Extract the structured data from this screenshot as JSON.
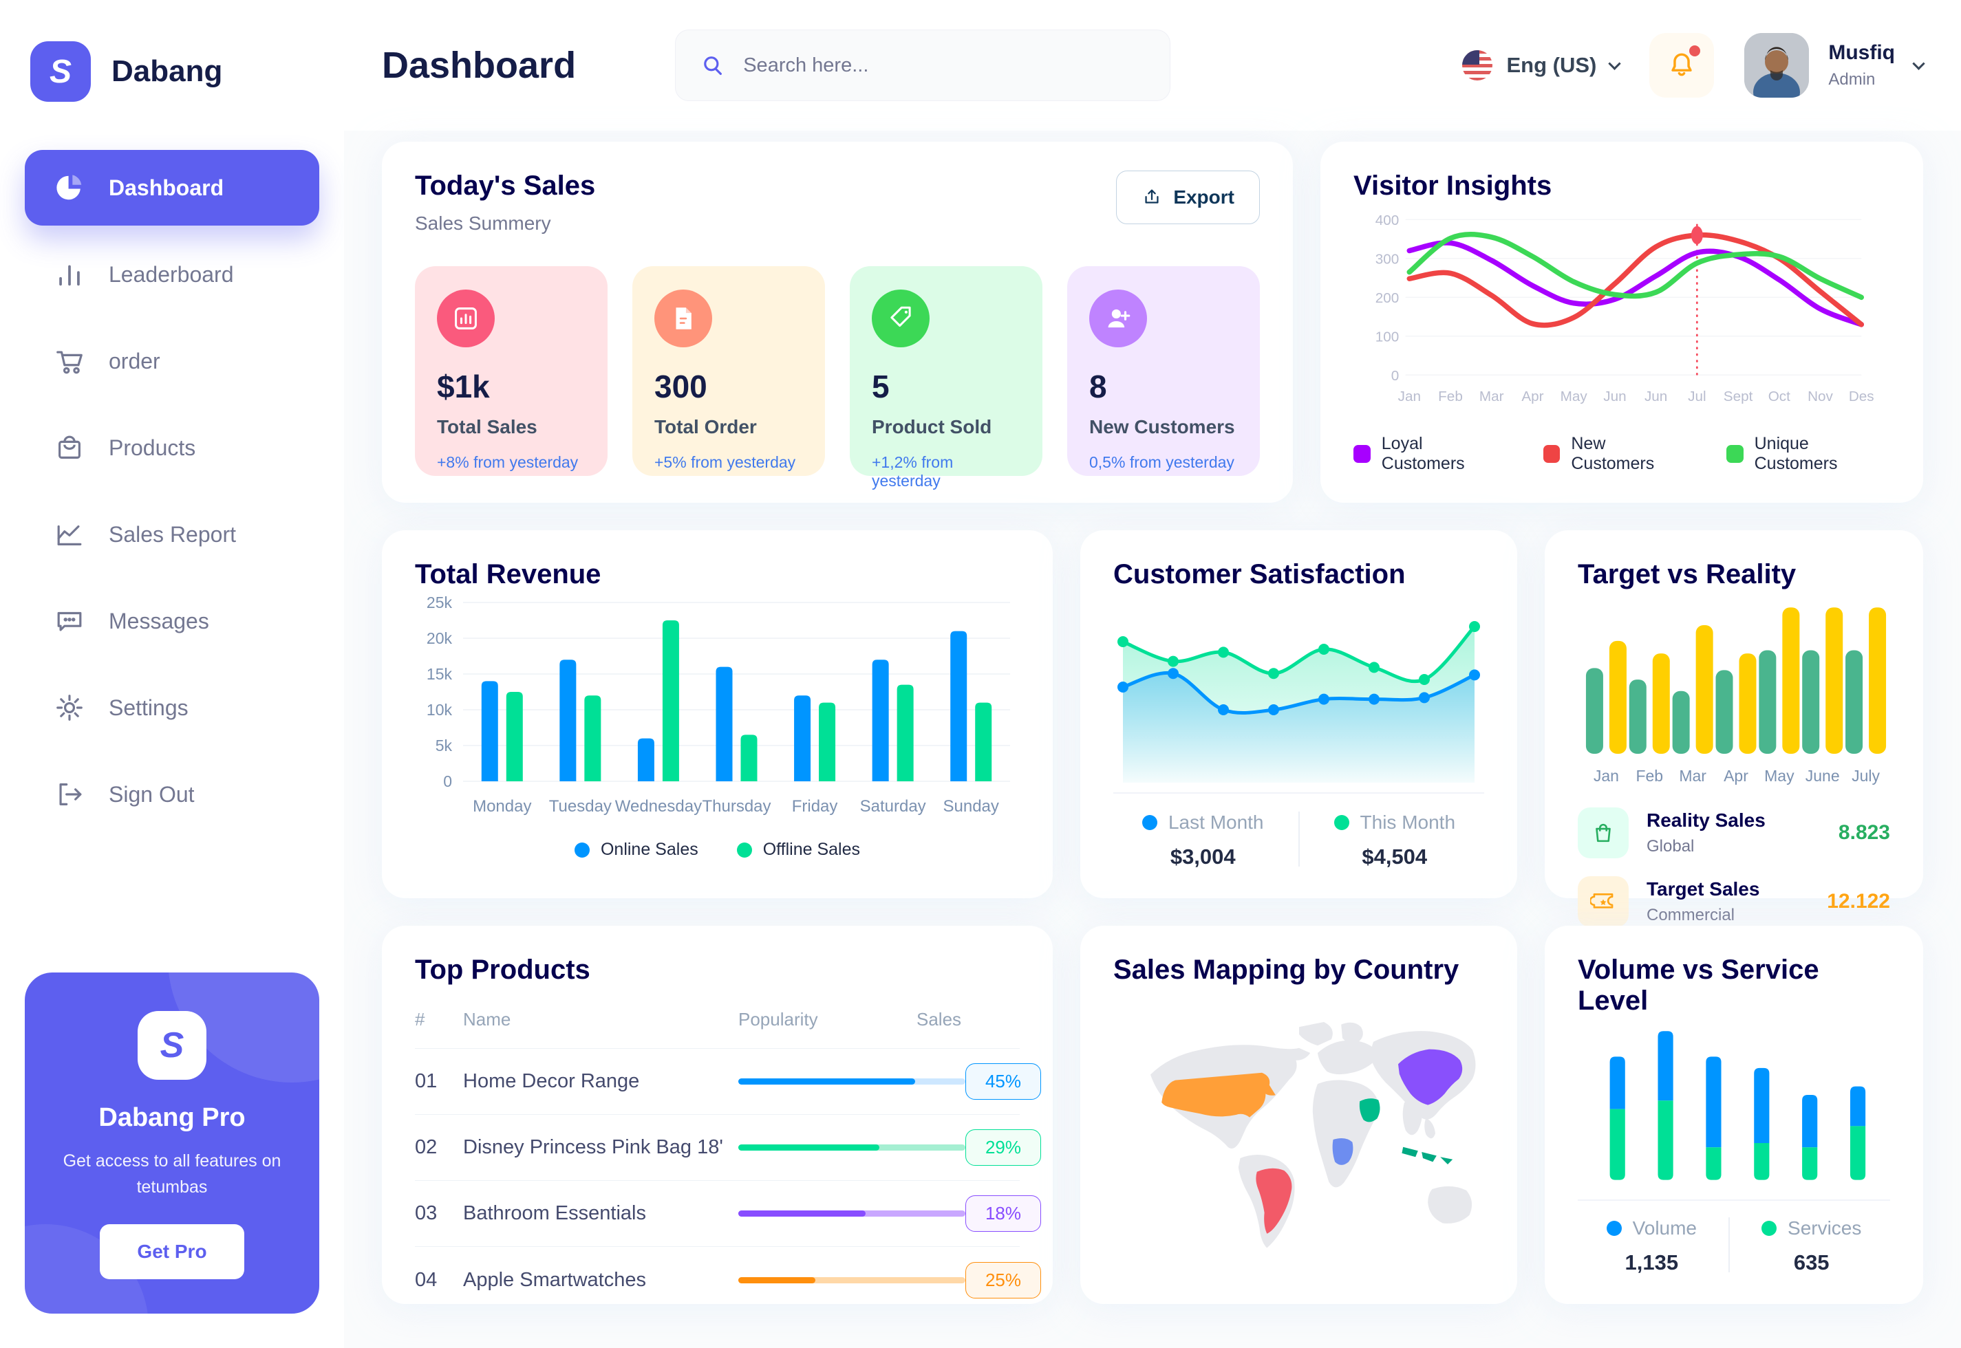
{
  "app": {
    "name": "Dabang"
  },
  "sidebar": {
    "items": [
      {
        "label": "Dashboard"
      },
      {
        "label": "Leaderboard"
      },
      {
        "label": "order"
      },
      {
        "label": "Products"
      },
      {
        "label": "Sales Report"
      },
      {
        "label": "Messages"
      },
      {
        "label": "Settings"
      },
      {
        "label": "Sign Out"
      }
    ],
    "active_index": 0,
    "pro": {
      "title": "Dabang Pro",
      "subtitle": "Get access to all features on tetumbas",
      "button": "Get Pro"
    }
  },
  "header": {
    "title": "Dashboard",
    "search_placeholder": "Search here...",
    "language": "Eng (US)",
    "user": {
      "name": "Musfiq",
      "role": "Admin"
    }
  },
  "today_sales": {
    "title": "Today's Sales",
    "subtitle": "Sales Summery",
    "export_label": "Export",
    "cards": [
      {
        "value": "$1k",
        "label": "Total Sales",
        "delta": "+8% from yesterday",
        "bg": "#FFE2E5",
        "icon_bg": "#FA5A7D"
      },
      {
        "value": "300",
        "label": "Total Order",
        "delta": "+5% from yesterday",
        "bg": "#FFF4DE",
        "icon_bg": "#FF947A"
      },
      {
        "value": "5",
        "label": "Product Sold",
        "delta": "+1,2% from yesterday",
        "bg": "#DCFCE7",
        "icon_bg": "#3CD856"
      },
      {
        "value": "8",
        "label": "New Customers",
        "delta": "0,5% from yesterday",
        "bg": "#F3E8FF",
        "icon_bg": "#BF83FF"
      }
    ]
  },
  "chart_data": [
    {
      "id": "visitor_insights",
      "type": "line",
      "title": "Visitor Insights",
      "x": [
        "Jan",
        "Feb",
        "Mar",
        "Apr",
        "May",
        "Jun",
        "Jun",
        "Jul",
        "Sept",
        "Oct",
        "Nov",
        "Des"
      ],
      "ylim": [
        0,
        400
      ],
      "yticks": [
        0,
        100,
        200,
        300,
        400
      ],
      "grid": true,
      "legend_position": "bottom",
      "series": [
        {
          "name": "Loyal Customers",
          "color": "#A700FF",
          "values": [
            320,
            340,
            295,
            230,
            185,
            195,
            255,
            315,
            305,
            245,
            170,
            130
          ]
        },
        {
          "name": "New Customers",
          "color": "#EF4444",
          "values": [
            248,
            262,
            205,
            132,
            148,
            235,
            330,
            360,
            345,
            300,
            215,
            130
          ]
        },
        {
          "name": "Unique Customers",
          "color": "#3CD856",
          "values": [
            265,
            352,
            355,
            305,
            240,
            207,
            213,
            288,
            310,
            305,
            248,
            200
          ]
        }
      ],
      "vline": {
        "index": 7,
        "color": "#F64E60"
      },
      "marker": {
        "series": 1,
        "index": 7
      }
    },
    {
      "id": "total_revenue",
      "type": "bar",
      "title": "Total Revenue",
      "categories": [
        "Monday",
        "Tuesday",
        "Wednesday",
        "Thursday",
        "Friday",
        "Saturday",
        "Sunday"
      ],
      "ylim": [
        0,
        25
      ],
      "ytick_labels": [
        "0",
        "5k",
        "10k",
        "15k",
        "20k",
        "25k"
      ],
      "grid": true,
      "legend_position": "bottom",
      "series": [
        {
          "name": "Online Sales",
          "color": "#0095FF",
          "values": [
            14,
            17,
            6,
            16,
            12,
            17,
            21
          ]
        },
        {
          "name": "Offline Sales",
          "color": "#00E096",
          "values": [
            12.5,
            12,
            22.5,
            6.5,
            11,
            13.5,
            11
          ]
        }
      ]
    },
    {
      "id": "customer_satisfaction",
      "type": "area",
      "title": "Customer Satisfaction",
      "ylim": [
        0,
        110
      ],
      "legend_position": "bottom",
      "series": [
        {
          "name": "Last Month",
          "color": "#0095FF",
          "total": "$3,004",
          "values": [
            55,
            64,
            40,
            40,
            47,
            47,
            48,
            63
          ]
        },
        {
          "name": "This Month",
          "color": "#00E096",
          "total": "$4,504",
          "values": [
            85,
            72,
            78,
            64,
            80,
            68,
            60,
            95
          ]
        }
      ]
    },
    {
      "id": "target_vs_reality",
      "type": "bar",
      "title": "Target vs Reality",
      "categories": [
        "Jan",
        "Feb",
        "Mar",
        "Apr",
        "May",
        "June",
        "July"
      ],
      "ylim": [
        0,
        15
      ],
      "series": [
        {
          "name": "Reality Sales",
          "subtitle": "Global",
          "color": "#4AB58E",
          "value_label": "8.823",
          "value_color": "#27AE60",
          "icon_bg": "#E2FFF3",
          "values": [
            8.2,
            7.1,
            6.0,
            8.0,
            9.9,
            9.9,
            9.9
          ]
        },
        {
          "name": "Target Sales",
          "subtitle": "Commercial",
          "color": "#FFCF00",
          "value_label": "12.122",
          "value_color": "#FFA412",
          "icon_bg": "#FFF4DE",
          "values": [
            10.8,
            9.6,
            12.3,
            9.6,
            14,
            14,
            14
          ]
        }
      ]
    },
    {
      "id": "top_products",
      "type": "table",
      "title": "Top Products",
      "columns": [
        "#",
        "Name",
        "Popularity",
        "Sales"
      ],
      "rows": [
        {
          "num": "01",
          "name": "Home Decor Range",
          "popularity": 0.78,
          "sales": "45%",
          "color": "#0095FF",
          "track": "#CDE7FF",
          "badge_bg": "#F0F9FF"
        },
        {
          "num": "02",
          "name": "Disney Princess Pink Bag 18'",
          "popularity": 0.62,
          "sales": "29%",
          "color": "#00E096",
          "track": "#A5EFD2",
          "badge_bg": "#F1FEF7"
        },
        {
          "num": "03",
          "name": "Bathroom Essentials",
          "popularity": 0.56,
          "sales": "18%",
          "color": "#884DFF",
          "track": "#C9A7FF",
          "badge_bg": "#FAF5FF"
        },
        {
          "num": "04",
          "name": "Apple Smartwatches",
          "popularity": 0.34,
          "sales": "25%",
          "color": "#FF8F0D",
          "track": "#FFD8A7",
          "badge_bg": "#FFF6EB"
        }
      ]
    },
    {
      "id": "sales_mapping",
      "type": "map",
      "title": "Sales Mapping by Country",
      "countries": [
        {
          "name": "United States",
          "color": "#FF9F38"
        },
        {
          "name": "Brazil",
          "color": "#F25A68"
        },
        {
          "name": "Saudi Arabia",
          "color": "#00BC8B"
        },
        {
          "name": "DR Congo",
          "color": "#6D8DF0"
        },
        {
          "name": "China",
          "color": "#8950FC"
        },
        {
          "name": "Indonesia",
          "color": "#00A982"
        }
      ]
    },
    {
      "id": "volume_service",
      "type": "bar",
      "stacked": true,
      "title": "Volume vs Service Level",
      "legend_position": "bottom",
      "series": [
        {
          "name": "Volume",
          "color": "#0095FF",
          "total": "1,135",
          "values": [
            37,
            49,
            64,
            53,
            37,
            28
          ]
        },
        {
          "name": "Services",
          "color": "#00E096",
          "total": "635",
          "values": [
            50,
            56,
            23,
            26,
            23,
            38
          ]
        }
      ]
    }
  ]
}
